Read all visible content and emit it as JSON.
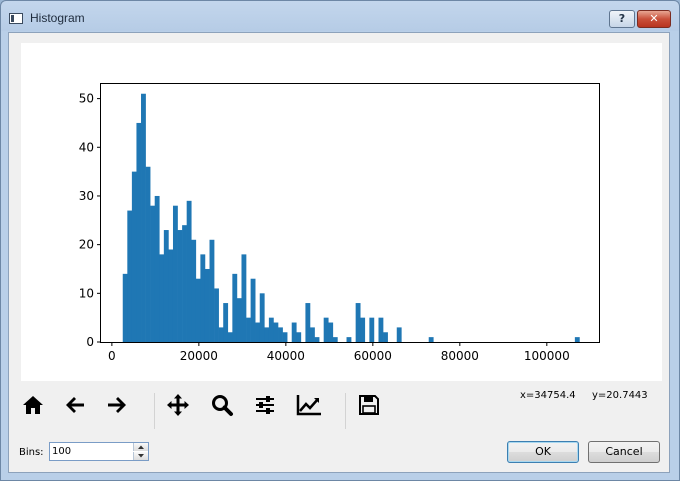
{
  "window": {
    "title": "Histogram",
    "help_label": "?",
    "close_label": "✕"
  },
  "chart_data": {
    "type": "bar",
    "title": "",
    "xlabel": "",
    "ylabel": "",
    "xlim": [
      -2500,
      112000
    ],
    "ylim": [
      0,
      53
    ],
    "x_ticks": [
      0,
      20000,
      40000,
      60000,
      80000,
      100000
    ],
    "y_ticks": [
      0,
      10,
      20,
      30,
      40,
      50
    ],
    "bin_start": 2500,
    "bin_width": 1050,
    "values": [
      14,
      27,
      35,
      45,
      51,
      36,
      28,
      30,
      18,
      23,
      19,
      28,
      23,
      24,
      29,
      21,
      13,
      18,
      15,
      21,
      11,
      3,
      8,
      2,
      14,
      9,
      18,
      5,
      13,
      4,
      10,
      3,
      5,
      4,
      3,
      2,
      0,
      4,
      2,
      0,
      8,
      3,
      1,
      0,
      5,
      4,
      1,
      0,
      0,
      1,
      0,
      8,
      5,
      0,
      5,
      0,
      5,
      2,
      0,
      0,
      3,
      0,
      0,
      0,
      0,
      0,
      0,
      1,
      0,
      0,
      0,
      0,
      0,
      0,
      0,
      0,
      0,
      0,
      0,
      0,
      0,
      0,
      0,
      0,
      0,
      0,
      0,
      0,
      0,
      0,
      0,
      0,
      0,
      0,
      0,
      0,
      0,
      0,
      0,
      1
    ],
    "bar_color": "#1f77b4"
  },
  "status": {
    "x_readout": "x=34754.4",
    "y_readout": "y=20.7443"
  },
  "toolbar": {
    "icons": [
      "home-icon",
      "back-arrow-icon",
      "forward-arrow-icon",
      "pan-move-icon",
      "zoom-magnifier-icon",
      "configure-sliders-icon",
      "edit-curves-icon",
      "save-floppy-icon"
    ]
  },
  "bins": {
    "label": "Bins:",
    "value": "100"
  },
  "buttons": {
    "ok": "OK",
    "cancel": "Cancel"
  }
}
